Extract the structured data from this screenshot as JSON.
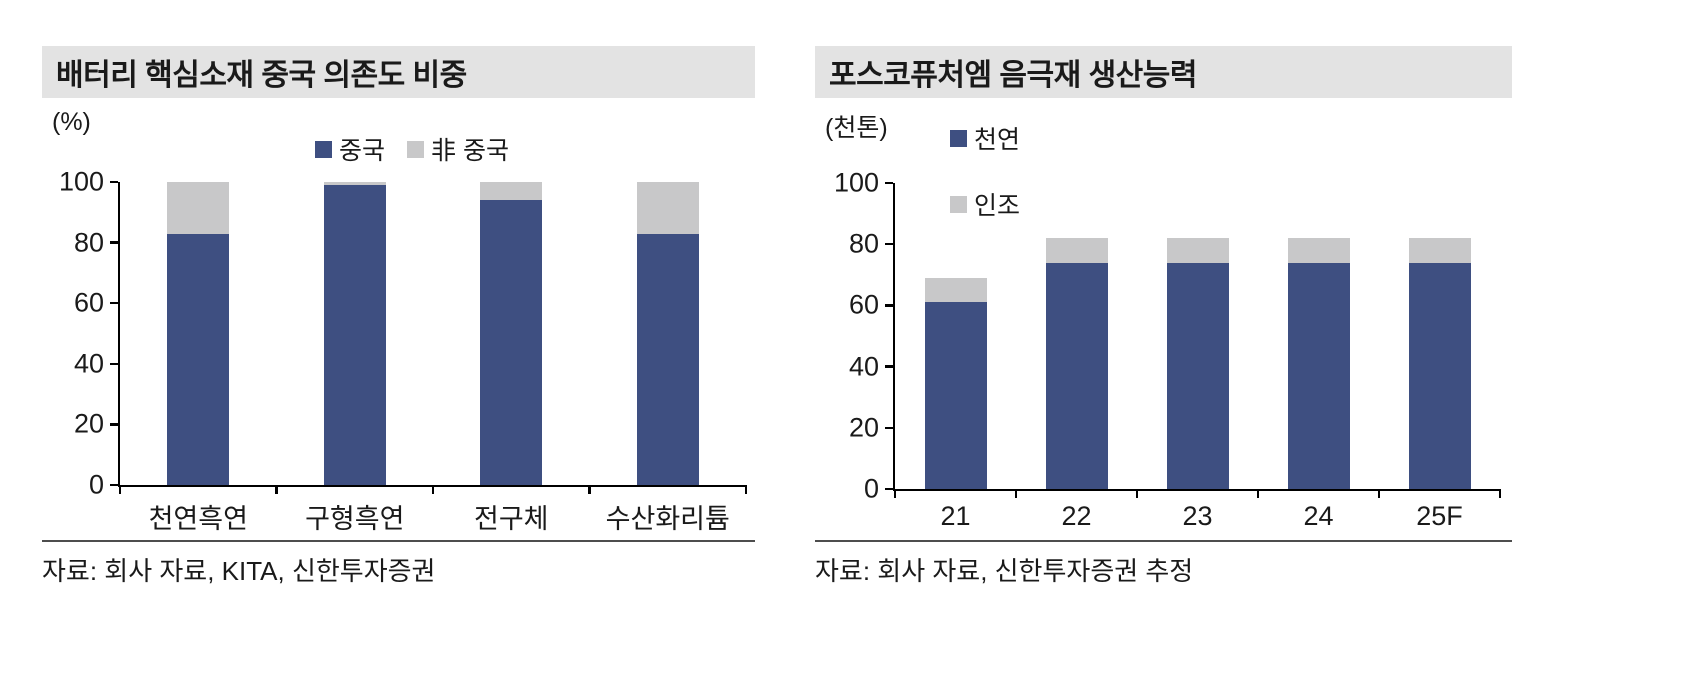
{
  "colors": {
    "series_primary": "#3e4f81",
    "series_secondary": "#c8c8c9",
    "title_background": "#e3e3e3",
    "axis": "#000000"
  },
  "chart_data": [
    {
      "type": "bar",
      "stacked": true,
      "title": "배터리 핵심소재 중국 의존도 비중",
      "unit_label": "(%)",
      "source": "자료: 회사 자료, KITA, 신한투자증권",
      "legend_position": "top-horizontal",
      "categories": [
        "천연흑연",
        "구형흑연",
        "전구체",
        "수산화리튬"
      ],
      "series": [
        {
          "name": "중국",
          "color": "#3e4f81",
          "values": [
            83,
            99,
            94,
            83
          ]
        },
        {
          "name": "非 중국",
          "color": "#c8c8c9",
          "values": [
            17,
            1,
            6,
            17
          ]
        }
      ],
      "ylim": [
        0,
        100
      ],
      "yticks": [
        0,
        20,
        40,
        60,
        80,
        100
      ],
      "grid": false
    },
    {
      "type": "bar",
      "stacked": true,
      "title": "포스코퓨처엠 음극재 생산능력",
      "unit_label": "(천톤)",
      "source": "자료: 회사 자료, 신한투자증권 추정",
      "legend_position": "top-vertical",
      "categories": [
        "21",
        "22",
        "23",
        "24",
        "25F"
      ],
      "series": [
        {
          "name": "천연",
          "color": "#3e4f81",
          "values": [
            61,
            74,
            74,
            74,
            74
          ]
        },
        {
          "name": "인조",
          "color": "#c8c8c9",
          "values": [
            8,
            8,
            8,
            8,
            8
          ]
        }
      ],
      "ylim": [
        0,
        100
      ],
      "yticks": [
        0,
        20,
        40,
        60,
        80,
        100
      ],
      "grid": false
    }
  ]
}
